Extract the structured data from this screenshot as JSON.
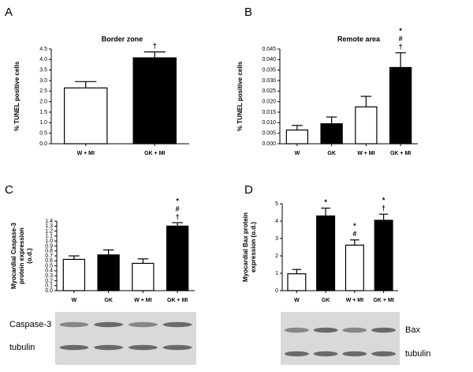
{
  "chart_data": [
    {
      "type": "bar",
      "panel": "A",
      "title": "Border zone",
      "y_label": [
        "% TUNEL positive cells"
      ],
      "categories": [
        "W + MI",
        "GK + MI"
      ],
      "values": [
        2.65,
        4.08
      ],
      "errors": [
        0.3,
        0.28
      ],
      "colors": [
        "#ffffff",
        "#000000"
      ],
      "annotations": [
        [],
        [
          "†"
        ]
      ],
      "ylim": [
        0,
        4.5
      ],
      "yticks": [
        {
          "value": 0,
          "label": "0.0"
        },
        0.5,
        {
          "value": 1,
          "label": "1.0"
        },
        1.5,
        {
          "value": 2,
          "label": "2.0"
        },
        2.5,
        {
          "value": 3,
          "label": "3.0"
        },
        3.5,
        {
          "value": 4,
          "label": "4.0"
        },
        4.5
      ]
    },
    {
      "type": "bar",
      "panel": "B",
      "title": "Remote area",
      "y_label": [
        "% TUNEL positive cells"
      ],
      "categories": [
        "W",
        "GK",
        "W + MI",
        "GK + MI"
      ],
      "values": [
        0.0065,
        0.0095,
        0.0175,
        0.0362
      ],
      "errors": [
        0.0022,
        0.0032,
        0.005,
        0.007
      ],
      "colors": [
        "#ffffff",
        "#000000",
        "#ffffff",
        "#000000"
      ],
      "annotations": [
        [],
        [],
        [],
        [
          "*",
          "#",
          "†"
        ]
      ],
      "ylim": [
        0,
        0.045
      ],
      "yticks": [
        {
          "value": 0,
          "label": "0.000"
        },
        0.005,
        {
          "value": 0.01,
          "label": "0.010"
        },
        0.015,
        {
          "value": 0.02,
          "label": "0.020"
        },
        0.025,
        {
          "value": 0.03,
          "label": "0.030"
        },
        0.035,
        {
          "value": 0.04,
          "label": "0.040"
        },
        0.045
      ]
    },
    {
      "type": "bar",
      "panel": "C",
      "y_label": [
        "Myocardial Caspase-3",
        "protein expression",
        "(o.d.)"
      ],
      "categories": [
        "W",
        "GK",
        "W + MI",
        "GK + MI"
      ],
      "values": [
        0.63,
        0.72,
        0.55,
        1.3
      ],
      "errors": [
        0.07,
        0.1,
        0.09,
        0.07
      ],
      "colors": [
        "#ffffff",
        "#000000",
        "#ffffff",
        "#000000"
      ],
      "annotations": [
        [],
        [],
        [],
        [
          "*",
          "#",
          "†"
        ]
      ],
      "blot_labels": [
        "Caspase-3",
        "tubulin"
      ],
      "ylim": [
        0,
        1.4
      ],
      "yticks": [
        {
          "value": 0,
          "label": "0.0"
        },
        0.1,
        0.2,
        0.3,
        0.4,
        0.5,
        0.6,
        0.7,
        0.8,
        0.9,
        {
          "value": 1,
          "label": "1.0"
        },
        1.1,
        1.2,
        1.3,
        1.4
      ]
    },
    {
      "type": "bar",
      "panel": "D",
      "y_label": [
        "Myocardial Bax protein",
        "expression (o.d.)"
      ],
      "categories": [
        "W",
        "GK",
        "W + MI",
        "GK + MI"
      ],
      "values": [
        0.97,
        4.3,
        2.62,
        4.05
      ],
      "errors": [
        0.25,
        0.45,
        0.3,
        0.35
      ],
      "colors": [
        "#ffffff",
        "#000000",
        "#ffffff",
        "#000000"
      ],
      "annotations": [
        [],
        [
          "*"
        ],
        [
          "*",
          "#"
        ],
        [
          "*",
          "†"
        ]
      ],
      "blot_labels": [
        "Bax",
        "tubulin"
      ],
      "ylim": [
        0,
        5
      ],
      "yticks": [
        0,
        1,
        2,
        3,
        4,
        5
      ]
    }
  ]
}
